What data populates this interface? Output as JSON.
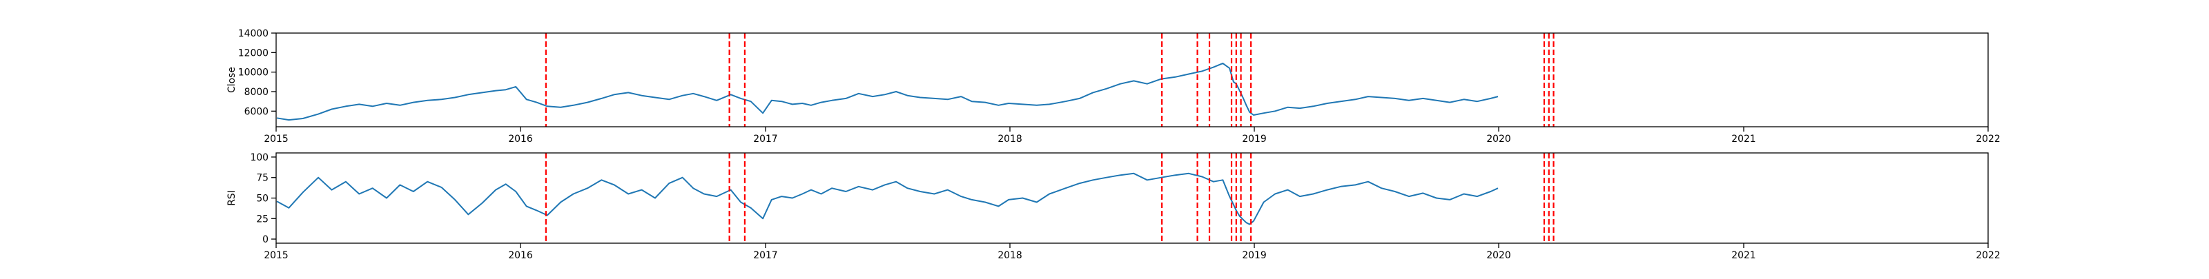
{
  "chart_data": [
    {
      "type": "line",
      "ylabel": "Close",
      "xlabel": "",
      "xlim": [
        "2015-01-01",
        "2022-01-01"
      ],
      "ylim": [
        4400,
        14000
      ],
      "yticks": [
        6000,
        8000,
        10000,
        12000,
        14000
      ],
      "xticks": [
        "2015",
        "2016",
        "2017",
        "2018",
        "2019",
        "2020",
        "2021",
        "2022"
      ],
      "grid": false,
      "color": "#1f77b4",
      "series": [
        {
          "points": [
            [
              "2015-01-02",
              5300
            ],
            [
              "2015-01-20",
              5100
            ],
            [
              "2015-02-10",
              5250
            ],
            [
              "2015-03-05",
              5700
            ],
            [
              "2015-03-25",
              6200
            ],
            [
              "2015-04-15",
              6500
            ],
            [
              "2015-05-05",
              6700
            ],
            [
              "2015-05-25",
              6500
            ],
            [
              "2015-06-15",
              6800
            ],
            [
              "2015-07-05",
              6600
            ],
            [
              "2015-07-25",
              6900
            ],
            [
              "2015-08-15",
              7100
            ],
            [
              "2015-09-05",
              7200
            ],
            [
              "2015-09-25",
              7400
            ],
            [
              "2015-10-15",
              7700
            ],
            [
              "2015-11-05",
              7900
            ],
            [
              "2015-11-25",
              8100
            ],
            [
              "2015-12-10",
              8200
            ],
            [
              "2015-12-25",
              8500
            ],
            [
              "2016-01-10",
              7200
            ],
            [
              "2016-01-25",
              6900
            ],
            [
              "2016-02-10",
              6500
            ],
            [
              "2016-03-01",
              6400
            ],
            [
              "2016-03-20",
              6600
            ],
            [
              "2016-04-10",
              6900
            ],
            [
              "2016-05-01",
              7300
            ],
            [
              "2016-05-20",
              7700
            ],
            [
              "2016-06-10",
              7900
            ],
            [
              "2016-06-30",
              7600
            ],
            [
              "2016-07-20",
              7400
            ],
            [
              "2016-08-10",
              7200
            ],
            [
              "2016-08-30",
              7600
            ],
            [
              "2016-09-15",
              7800
            ],
            [
              "2016-10-01",
              7500
            ],
            [
              "2016-10-20",
              7100
            ],
            [
              "2016-11-10",
              7700
            ],
            [
              "2016-11-25",
              7300
            ],
            [
              "2016-12-10",
              7000
            ],
            [
              "2016-12-28",
              5800
            ],
            [
              "2017-01-10",
              7100
            ],
            [
              "2017-01-25",
              7000
            ],
            [
              "2017-02-10",
              6700
            ],
            [
              "2017-02-25",
              6800
            ],
            [
              "2017-03-10",
              6600
            ],
            [
              "2017-03-25",
              6900
            ],
            [
              "2017-04-10",
              7100
            ],
            [
              "2017-05-01",
              7300
            ],
            [
              "2017-05-20",
              7800
            ],
            [
              "2017-06-10",
              7500
            ],
            [
              "2017-06-28",
              7700
            ],
            [
              "2017-07-15",
              8000
            ],
            [
              "2017-08-01",
              7600
            ],
            [
              "2017-08-20",
              7400
            ],
            [
              "2017-09-10",
              7300
            ],
            [
              "2017-09-30",
              7200
            ],
            [
              "2017-10-20",
              7500
            ],
            [
              "2017-11-05",
              7000
            ],
            [
              "2017-11-25",
              6900
            ],
            [
              "2017-12-15",
              6600
            ],
            [
              "2017-12-30",
              6800
            ],
            [
              "2018-01-20",
              6700
            ],
            [
              "2018-02-10",
              6600
            ],
            [
              "2018-03-01",
              6700
            ],
            [
              "2018-03-25",
              7000
            ],
            [
              "2018-04-15",
              7300
            ],
            [
              "2018-05-05",
              7900
            ],
            [
              "2018-05-25",
              8300
            ],
            [
              "2018-06-15",
              8800
            ],
            [
              "2018-07-05",
              9100
            ],
            [
              "2018-07-25",
              8800
            ],
            [
              "2018-08-15",
              9300
            ],
            [
              "2018-09-05",
              9500
            ],
            [
              "2018-09-25",
              9800
            ],
            [
              "2018-10-15",
              10100
            ],
            [
              "2018-11-01",
              10500
            ],
            [
              "2018-11-15",
              10900
            ],
            [
              "2018-11-25",
              10400
            ],
            [
              "2018-12-01",
              9000
            ],
            [
              "2018-12-05",
              8800
            ],
            [
              "2018-12-10",
              8100
            ],
            [
              "2018-12-15",
              7400
            ],
            [
              "2018-12-20",
              6600
            ],
            [
              "2018-12-25",
              5900
            ],
            [
              "2018-12-31",
              5600
            ],
            [
              "2019-01-15",
              5800
            ],
            [
              "2019-02-01",
              6000
            ],
            [
              "2019-02-20",
              6400
            ],
            [
              "2019-03-10",
              6300
            ],
            [
              "2019-03-30",
              6500
            ],
            [
              "2019-04-20",
              6800
            ],
            [
              "2019-05-10",
              7000
            ],
            [
              "2019-06-01",
              7200
            ],
            [
              "2019-06-20",
              7500
            ],
            [
              "2019-07-10",
              7400
            ],
            [
              "2019-07-30",
              7300
            ],
            [
              "2019-08-20",
              7100
            ],
            [
              "2019-09-10",
              7300
            ],
            [
              "2019-09-30",
              7100
            ],
            [
              "2019-10-20",
              6900
            ],
            [
              "2019-11-10",
              7200
            ],
            [
              "2019-11-30",
              7000
            ],
            [
              "2019-12-20",
              7300
            ],
            [
              "2019-12-31",
              7500
            ]
          ]
        }
      ],
      "markers": [
        "2016-02-08",
        "2016-11-08",
        "2016-12-01",
        "2018-08-16",
        "2018-10-08",
        "2018-10-26",
        "2018-11-28",
        "2018-12-05",
        "2018-12-12",
        "2018-12-27",
        "2020-03-09",
        "2020-03-16",
        "2020-03-23"
      ],
      "marker_color": "#ff0000"
    },
    {
      "type": "line",
      "ylabel": "RSI",
      "xlabel": "",
      "xlim": [
        "2015-01-01",
        "2022-01-01"
      ],
      "ylim": [
        -5,
        105
      ],
      "yticks": [
        0,
        25,
        50,
        75,
        100
      ],
      "xticks": [
        "2015",
        "2016",
        "2017",
        "2018",
        "2019",
        "2020",
        "2021",
        "2022"
      ],
      "grid": false,
      "color": "#1f77b4",
      "series": [
        {
          "points": [
            [
              "2015-01-02",
              46
            ],
            [
              "2015-01-20",
              38
            ],
            [
              "2015-02-10",
              57
            ],
            [
              "2015-03-05",
              75
            ],
            [
              "2015-03-25",
              60
            ],
            [
              "2015-04-15",
              70
            ],
            [
              "2015-05-05",
              55
            ],
            [
              "2015-05-25",
              62
            ],
            [
              "2015-06-15",
              50
            ],
            [
              "2015-07-05",
              66
            ],
            [
              "2015-07-25",
              58
            ],
            [
              "2015-08-15",
              70
            ],
            [
              "2015-09-05",
              63
            ],
            [
              "2015-09-25",
              48
            ],
            [
              "2015-10-15",
              30
            ],
            [
              "2015-11-05",
              44
            ],
            [
              "2015-11-25",
              60
            ],
            [
              "2015-12-10",
              67
            ],
            [
              "2015-12-25",
              58
            ],
            [
              "2016-01-10",
              40
            ],
            [
              "2016-01-25",
              35
            ],
            [
              "2016-02-10",
              29
            ],
            [
              "2016-03-01",
              45
            ],
            [
              "2016-03-20",
              55
            ],
            [
              "2016-04-10",
              62
            ],
            [
              "2016-05-01",
              72
            ],
            [
              "2016-05-20",
              66
            ],
            [
              "2016-06-10",
              55
            ],
            [
              "2016-06-30",
              60
            ],
            [
              "2016-07-20",
              50
            ],
            [
              "2016-08-10",
              68
            ],
            [
              "2016-08-30",
              75
            ],
            [
              "2016-09-15",
              62
            ],
            [
              "2016-10-01",
              55
            ],
            [
              "2016-10-20",
              52
            ],
            [
              "2016-11-10",
              60
            ],
            [
              "2016-11-25",
              45
            ],
            [
              "2016-12-10",
              38
            ],
            [
              "2016-12-28",
              25
            ],
            [
              "2017-01-10",
              48
            ],
            [
              "2017-01-25",
              52
            ],
            [
              "2017-02-10",
              50
            ],
            [
              "2017-02-25",
              55
            ],
            [
              "2017-03-10",
              60
            ],
            [
              "2017-03-25",
              55
            ],
            [
              "2017-04-10",
              62
            ],
            [
              "2017-05-01",
              58
            ],
            [
              "2017-05-20",
              64
            ],
            [
              "2017-06-10",
              60
            ],
            [
              "2017-06-28",
              66
            ],
            [
              "2017-07-15",
              70
            ],
            [
              "2017-08-01",
              62
            ],
            [
              "2017-08-20",
              58
            ],
            [
              "2017-09-10",
              55
            ],
            [
              "2017-09-30",
              60
            ],
            [
              "2017-10-20",
              52
            ],
            [
              "2017-11-05",
              48
            ],
            [
              "2017-11-25",
              45
            ],
            [
              "2017-12-15",
              40
            ],
            [
              "2017-12-30",
              48
            ],
            [
              "2018-01-20",
              50
            ],
            [
              "2018-02-10",
              45
            ],
            [
              "2018-03-01",
              55
            ],
            [
              "2018-03-25",
              62
            ],
            [
              "2018-04-15",
              68
            ],
            [
              "2018-05-05",
              72
            ],
            [
              "2018-05-25",
              75
            ],
            [
              "2018-06-15",
              78
            ],
            [
              "2018-07-05",
              80
            ],
            [
              "2018-07-25",
              72
            ],
            [
              "2018-08-15",
              75
            ],
            [
              "2018-09-05",
              78
            ],
            [
              "2018-09-25",
              80
            ],
            [
              "2018-10-15",
              76
            ],
            [
              "2018-11-01",
              70
            ],
            [
              "2018-11-15",
              72
            ],
            [
              "2018-11-25",
              52
            ],
            [
              "2018-12-01",
              42
            ],
            [
              "2018-12-05",
              35
            ],
            [
              "2018-12-10",
              28
            ],
            [
              "2018-12-15",
              24
            ],
            [
              "2018-12-20",
              20
            ],
            [
              "2018-12-25",
              18
            ],
            [
              "2018-12-31",
              22
            ],
            [
              "2019-01-15",
              45
            ],
            [
              "2019-02-01",
              55
            ],
            [
              "2019-02-20",
              60
            ],
            [
              "2019-03-10",
              52
            ],
            [
              "2019-03-30",
              55
            ],
            [
              "2019-04-20",
              60
            ],
            [
              "2019-05-10",
              64
            ],
            [
              "2019-06-01",
              66
            ],
            [
              "2019-06-20",
              70
            ],
            [
              "2019-07-10",
              62
            ],
            [
              "2019-07-30",
              58
            ],
            [
              "2019-08-20",
              52
            ],
            [
              "2019-09-10",
              56
            ],
            [
              "2019-09-30",
              50
            ],
            [
              "2019-10-20",
              48
            ],
            [
              "2019-11-10",
              55
            ],
            [
              "2019-11-30",
              52
            ],
            [
              "2019-12-20",
              58
            ],
            [
              "2019-12-31",
              62
            ]
          ]
        }
      ],
      "markers": [
        "2016-02-08",
        "2016-11-08",
        "2016-12-01",
        "2018-08-16",
        "2018-10-08",
        "2018-10-26",
        "2018-11-28",
        "2018-12-05",
        "2018-12-12",
        "2018-12-27",
        "2020-03-09",
        "2020-03-16",
        "2020-03-23"
      ],
      "marker_color": "#ff0000"
    }
  ]
}
